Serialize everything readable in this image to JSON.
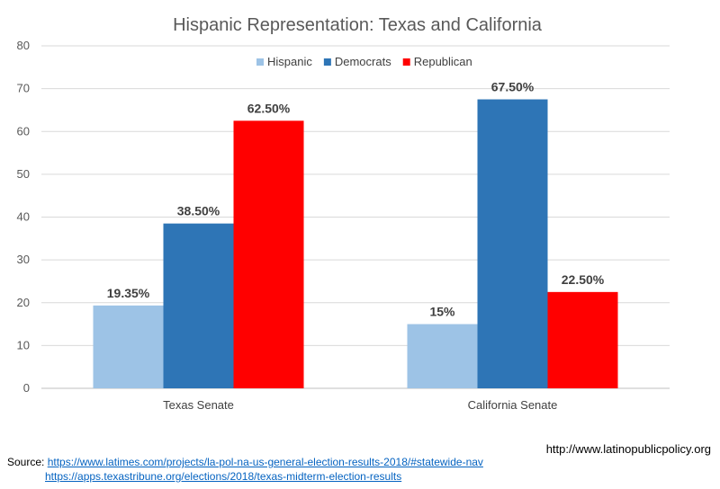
{
  "chart_data": {
    "type": "bar",
    "title": "Hispanic Representation: Texas and California",
    "categories": [
      "Texas Senate",
      "California Senate"
    ],
    "series": [
      {
        "name": "Hispanic",
        "values": [
          19.35,
          15
        ],
        "labels": [
          "19.35%",
          "15%"
        ],
        "color": "#9dc3e6"
      },
      {
        "name": "Democrats",
        "values": [
          38.5,
          67.5
        ],
        "labels": [
          "38.50%",
          "67.50%"
        ],
        "color": "#2e75b6"
      },
      {
        "name": "Republican",
        "values": [
          62.5,
          22.5
        ],
        "labels": [
          "62.50%",
          "22.50%"
        ],
        "color": "#ff0000"
      }
    ],
    "ylim": [
      0,
      80
    ],
    "yticks": [
      0,
      10,
      20,
      30,
      40,
      50,
      60,
      70,
      80
    ],
    "grid": true,
    "legend": "top-center"
  },
  "footer": {
    "website": "http://www.latinopublicpolicy.org",
    "source_label": "Source:",
    "source_url_1": "https://www.latimes.com/projects/la-pol-na-us-general-election-results-2018/#statewide-nav",
    "source_url_2": "https://apps.texastribune.org/elections/2018/texas-midterm-election-results"
  }
}
